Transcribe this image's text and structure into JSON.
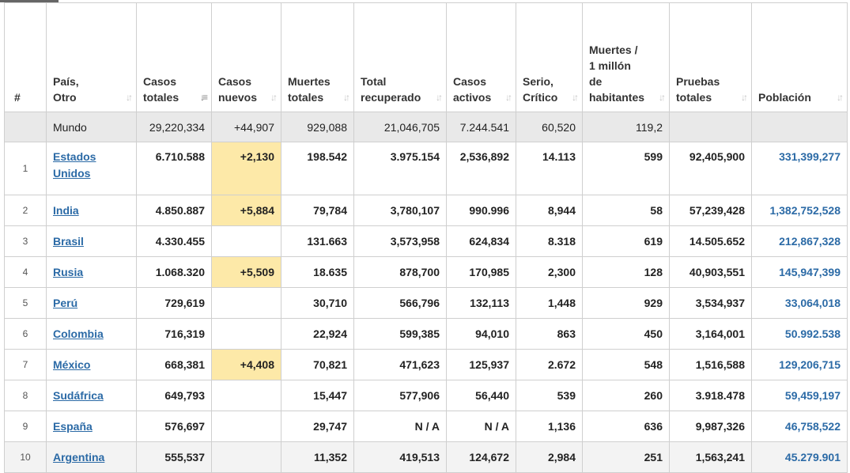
{
  "headers": [
    {
      "label": "#",
      "name": "hdr-rank"
    },
    {
      "label": "País,\nOtro",
      "name": "hdr-country"
    },
    {
      "label": "Casos\ntotales",
      "name": "hdr-total-cases"
    },
    {
      "label": "Casos\nnuevos",
      "name": "hdr-new-cases"
    },
    {
      "label": "Muertes\ntotales",
      "name": "hdr-total-deaths"
    },
    {
      "label": "Total\nrecuperado",
      "name": "hdr-total-recovered"
    },
    {
      "label": "Casos\nactivos",
      "name": "hdr-active-cases"
    },
    {
      "label": "Serio,\nCrítico",
      "name": "hdr-serious-critical"
    },
    {
      "label": "Muertes /\n1 millón\nde\nhabitantes",
      "name": "hdr-deaths-per-million"
    },
    {
      "label": "Pruebas\ntotales",
      "name": "hdr-total-tests"
    },
    {
      "label": "Población",
      "name": "hdr-population"
    }
  ],
  "world": {
    "label": "Mundo",
    "total_cases": "29,220,334",
    "new_cases": "+44,907",
    "total_deaths": "929,088",
    "total_recovered": "21,046,705",
    "active_cases": "7.244.541",
    "serious_critical": "60,520",
    "deaths_per_million": "119,2",
    "total_tests": "",
    "population": ""
  },
  "rows": [
    {
      "rank": "1",
      "country": "Estados\nUnidos",
      "total_cases": "6.710.588",
      "new_cases": "+2,130",
      "total_deaths": "198.542",
      "total_recovered": "3.975.154",
      "active_cases": "2,536,892",
      "serious_critical": "14.113",
      "deaths_per_million": "599",
      "total_tests": "92,405,900",
      "population": "331,399,277"
    },
    {
      "rank": "2",
      "country": "India",
      "total_cases": "4.850.887",
      "new_cases": "+5,884",
      "total_deaths": "79,784",
      "total_recovered": "3,780,107",
      "active_cases": "990.996",
      "serious_critical": "8,944",
      "deaths_per_million": "58",
      "total_tests": "57,239,428",
      "population": "1,382,752,528"
    },
    {
      "rank": "3",
      "country": "Brasil",
      "total_cases": "4.330.455",
      "new_cases": "",
      "total_deaths": "131.663",
      "total_recovered": "3,573,958",
      "active_cases": "624,834",
      "serious_critical": "8.318",
      "deaths_per_million": "619",
      "total_tests": "14.505.652",
      "population": "212,867,328"
    },
    {
      "rank": "4",
      "country": "Rusia",
      "total_cases": "1.068.320",
      "new_cases": "+5,509",
      "total_deaths": "18.635",
      "total_recovered": "878,700",
      "active_cases": "170,985",
      "serious_critical": "2,300",
      "deaths_per_million": "128",
      "total_tests": "40,903,551",
      "population": "145,947,399"
    },
    {
      "rank": "5",
      "country": "Perú",
      "total_cases": "729,619",
      "new_cases": "",
      "total_deaths": "30,710",
      "total_recovered": "566,796",
      "active_cases": "132,113",
      "serious_critical": "1,448",
      "deaths_per_million": "929",
      "total_tests": "3,534,937",
      "population": "33,064,018"
    },
    {
      "rank": "6",
      "country": "Colombia",
      "total_cases": "716,319",
      "new_cases": "",
      "total_deaths": "22,924",
      "total_recovered": "599,385",
      "active_cases": "94,010",
      "serious_critical": "863",
      "deaths_per_million": "450",
      "total_tests": "3,164,001",
      "population": "50.992.538"
    },
    {
      "rank": "7",
      "country": "México",
      "total_cases": "668,381",
      "new_cases": "+4,408",
      "total_deaths": "70,821",
      "total_recovered": "471,623",
      "active_cases": "125,937",
      "serious_critical": "2.672",
      "deaths_per_million": "548",
      "total_tests": "1,516,588",
      "population": "129,206,715"
    },
    {
      "rank": "8",
      "country": "Sudáfrica",
      "total_cases": "649,793",
      "new_cases": "",
      "total_deaths": "15,447",
      "total_recovered": "577,906",
      "active_cases": "56,440",
      "serious_critical": "539",
      "deaths_per_million": "260",
      "total_tests": "3.918.478",
      "population": "59,459,197"
    },
    {
      "rank": "9",
      "country": "España",
      "total_cases": "576,697",
      "new_cases": "",
      "total_deaths": "29,747",
      "total_recovered": "N / A",
      "active_cases": "N / A",
      "serious_critical": "1,136",
      "deaths_per_million": "636",
      "total_tests": "9,987,326",
      "population": "46,758,522"
    },
    {
      "rank": "10",
      "country": "Argentina",
      "total_cases": "555,537",
      "new_cases": "",
      "total_deaths": "11,352",
      "total_recovered": "419,513",
      "active_cases": "124,672",
      "serious_critical": "2,984",
      "deaths_per_million": "251",
      "total_tests": "1,563,241",
      "population": "45.279.901"
    }
  ],
  "icons": {
    "sort": "sort-arrows-icon",
    "sort_active": "sort-descending-icon"
  },
  "colors": {
    "link": "#2b6aa6",
    "new_cases_highlight": "#fde9a8",
    "world_row": "#e9e9e9"
  }
}
